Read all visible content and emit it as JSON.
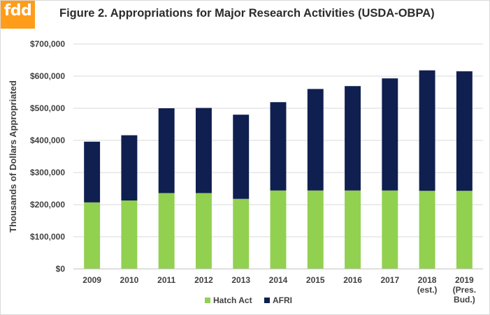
{
  "logo": {
    "text": "fdd",
    "color": "#ff9c1a"
  },
  "chart_data": {
    "type": "bar",
    "stacked": true,
    "title": "Figure 2. Appropriations for Major Research Activities  (USDA-OBPA)",
    "xlabel": "",
    "ylabel": "Thousands of Dollars Appropriated",
    "ylim": [
      0,
      700000
    ],
    "yticks": [
      0,
      100000,
      200000,
      300000,
      400000,
      500000,
      600000,
      700000
    ],
    "ytick_labels": [
      "$0",
      "$100,000",
      "$200,000",
      "$300,000",
      "$400,000",
      "$500,000",
      "$600,000",
      "$700,000"
    ],
    "grid": true,
    "legend_position": "bottom",
    "categories": [
      [
        "2009"
      ],
      [
        "2010"
      ],
      [
        "2011"
      ],
      [
        "2012"
      ],
      [
        "2013"
      ],
      [
        "2014"
      ],
      [
        "2015"
      ],
      [
        "2016"
      ],
      [
        "2017"
      ],
      [
        "2018",
        "(est.)"
      ],
      [
        "2019",
        "(Pres.",
        "Bud.)"
      ]
    ],
    "series": [
      {
        "name": "Hatch Act",
        "color": "#92d050",
        "values": [
          207000,
          213000,
          236000,
          236000,
          218000,
          244000,
          244000,
          244000,
          244000,
          243000,
          243000
        ]
      },
      {
        "name": "AFRI",
        "color": "#0f1f4f",
        "values": [
          189000,
          203000,
          264000,
          265000,
          262000,
          275000,
          316000,
          325000,
          349000,
          375000,
          372000
        ]
      }
    ]
  }
}
